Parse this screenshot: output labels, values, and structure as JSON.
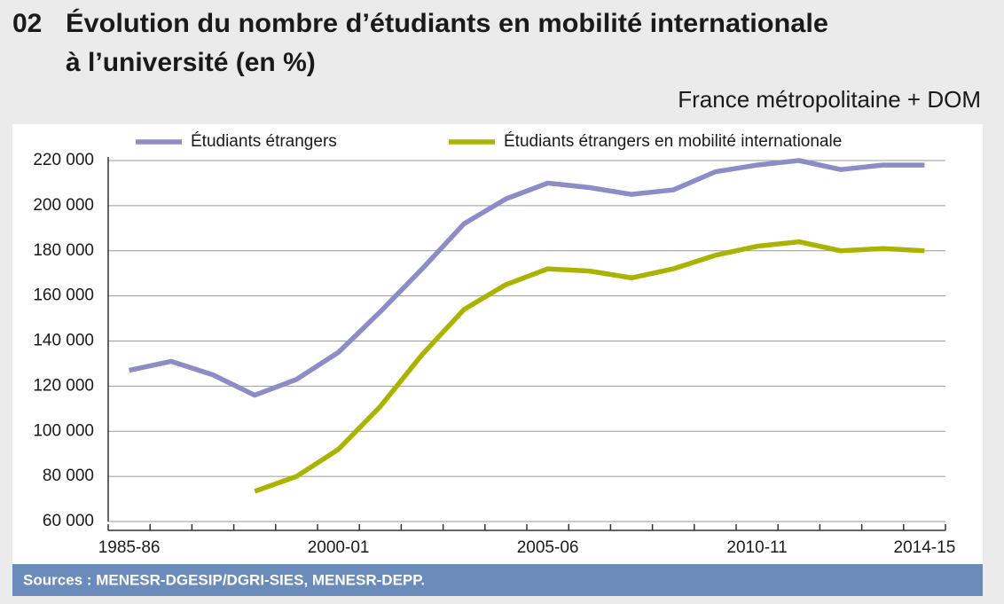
{
  "chart_data": {
    "type": "line",
    "number": "02",
    "title": [
      "Évolution du nombre d’étudiants en mobilité internationale",
      "à l’université (en %)"
    ],
    "subtitle": "France métropolitaine + DOM",
    "source": "Sources : MENESR-DGESIP/DGRI-SIES, MENESR-DEPP.",
    "categories": [
      "1985-86",
      null,
      null,
      null,
      null,
      "2000-01",
      null,
      null,
      null,
      null,
      "2005-06",
      null,
      null,
      null,
      null,
      "2010-11",
      null,
      null,
      null,
      "2014-15"
    ],
    "series": [
      {
        "name": "Étudiants étrangers",
        "color": "#8c8cc6",
        "values": [
          127000,
          131000,
          125000,
          116000,
          123000,
          135000,
          153000,
          172000,
          192000,
          203000,
          210000,
          208000,
          205000,
          207000,
          215000,
          218000,
          220000,
          216000,
          218000,
          218000
        ]
      },
      {
        "name": "Étudiants étrangers en mobilité internationale",
        "color": "#aab400",
        "values": [
          null,
          null,
          null,
          73400,
          80000,
          92000,
          111000,
          134000,
          154000,
          165000,
          172000,
          171000,
          168000,
          172000,
          178000,
          182000,
          184000,
          180000,
          181000,
          180000
        ]
      }
    ],
    "ylim": [
      60000,
      220000
    ],
    "yticks": [
      {
        "value": 60000,
        "label": "60 000"
      },
      {
        "value": 80000,
        "label": "80 000"
      },
      {
        "value": 100000,
        "label": "100 000"
      },
      {
        "value": 120000,
        "label": "120 000"
      },
      {
        "value": 140000,
        "label": "140 000"
      },
      {
        "value": 160000,
        "label": "160 000"
      },
      {
        "value": 180000,
        "label": "180 000"
      },
      {
        "value": 200000,
        "label": "200 000"
      },
      {
        "value": 220000,
        "label": "220 000"
      }
    ],
    "grid": true,
    "legend": "top"
  }
}
